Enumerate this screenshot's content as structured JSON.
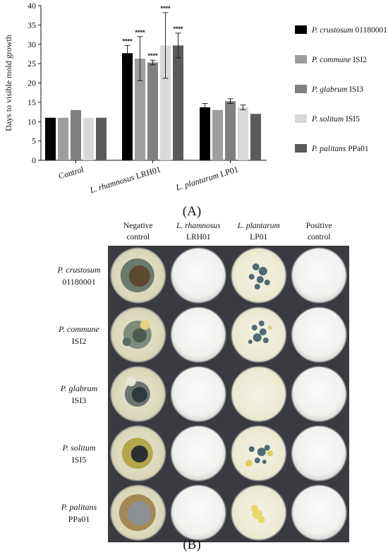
{
  "panel_a_label": "(A)",
  "panel_b_label": "(B)",
  "chart_data": {
    "type": "bar",
    "ylabel": "Days to visible mold growth",
    "xlabel": "",
    "ylim": [
      0,
      40
    ],
    "yticks": [
      0,
      5,
      10,
      15,
      20,
      25,
      30,
      35,
      40
    ],
    "grid": false,
    "legend_position": "right",
    "categories": [
      {
        "italic": "",
        "plain": "Control"
      },
      {
        "italic": "L. rhamnosus",
        "plain": " LRH01"
      },
      {
        "italic": "L. plantarum",
        "plain": " LP01"
      }
    ],
    "series": [
      {
        "name_italic": "P. crustosum",
        "name_plain": " 01180001",
        "color": "#000000",
        "values": [
          11,
          27.7,
          13.7
        ],
        "errors": [
          0,
          2.0,
          1.0
        ],
        "significance": [
          "",
          "****",
          ""
        ]
      },
      {
        "name_italic": "P. commune",
        "name_plain": " ISI2",
        "color": "#9e9e9e",
        "values": [
          11,
          26.3,
          13.0
        ],
        "errors": [
          0,
          5.7,
          0
        ],
        "significance": [
          "",
          "****",
          ""
        ]
      },
      {
        "name_italic": "P. glabrum",
        "name_plain": " ISI3",
        "color": "#808080",
        "values": [
          13,
          25.3,
          15.3
        ],
        "errors": [
          0,
          0.6,
          0.6
        ],
        "significance": [
          "",
          "****",
          ""
        ]
      },
      {
        "name_italic": "P. solitum",
        "name_plain": " ISI5",
        "color": "#d9d9d9",
        "values": [
          11,
          29.7,
          13.7
        ],
        "errors": [
          0,
          8.5,
          0.6
        ],
        "significance": [
          "",
          "****",
          ""
        ]
      },
      {
        "name_italic": "P. palitans",
        "name_plain": " PPa01",
        "color": "#5a5a5a",
        "values": [
          11,
          29.7,
          12.0
        ],
        "errors": [
          0,
          3.2,
          0
        ],
        "significance": [
          "",
          "****",
          ""
        ]
      }
    ]
  },
  "plate_grid": {
    "columns": [
      {
        "italic": "",
        "line1": "Negative",
        "line2": "control"
      },
      {
        "italic": "L. rhamnosus",
        "line1": "",
        "line2": "LRH01"
      },
      {
        "italic": "L. plantarum",
        "line1": "",
        "line2": "LP01"
      },
      {
        "italic": "",
        "line1": "Positive",
        "line2": "control"
      }
    ],
    "rows": [
      {
        "italic": "P. crustosum",
        "code": "01180001"
      },
      {
        "italic": "P. commune",
        "code": "ISI2"
      },
      {
        "italic": "P. glabrum",
        "code": "ISI3"
      },
      {
        "italic": "P. solitum",
        "code": "ISI5"
      },
      {
        "italic": "P. palitans",
        "code": "PPa01"
      }
    ]
  }
}
